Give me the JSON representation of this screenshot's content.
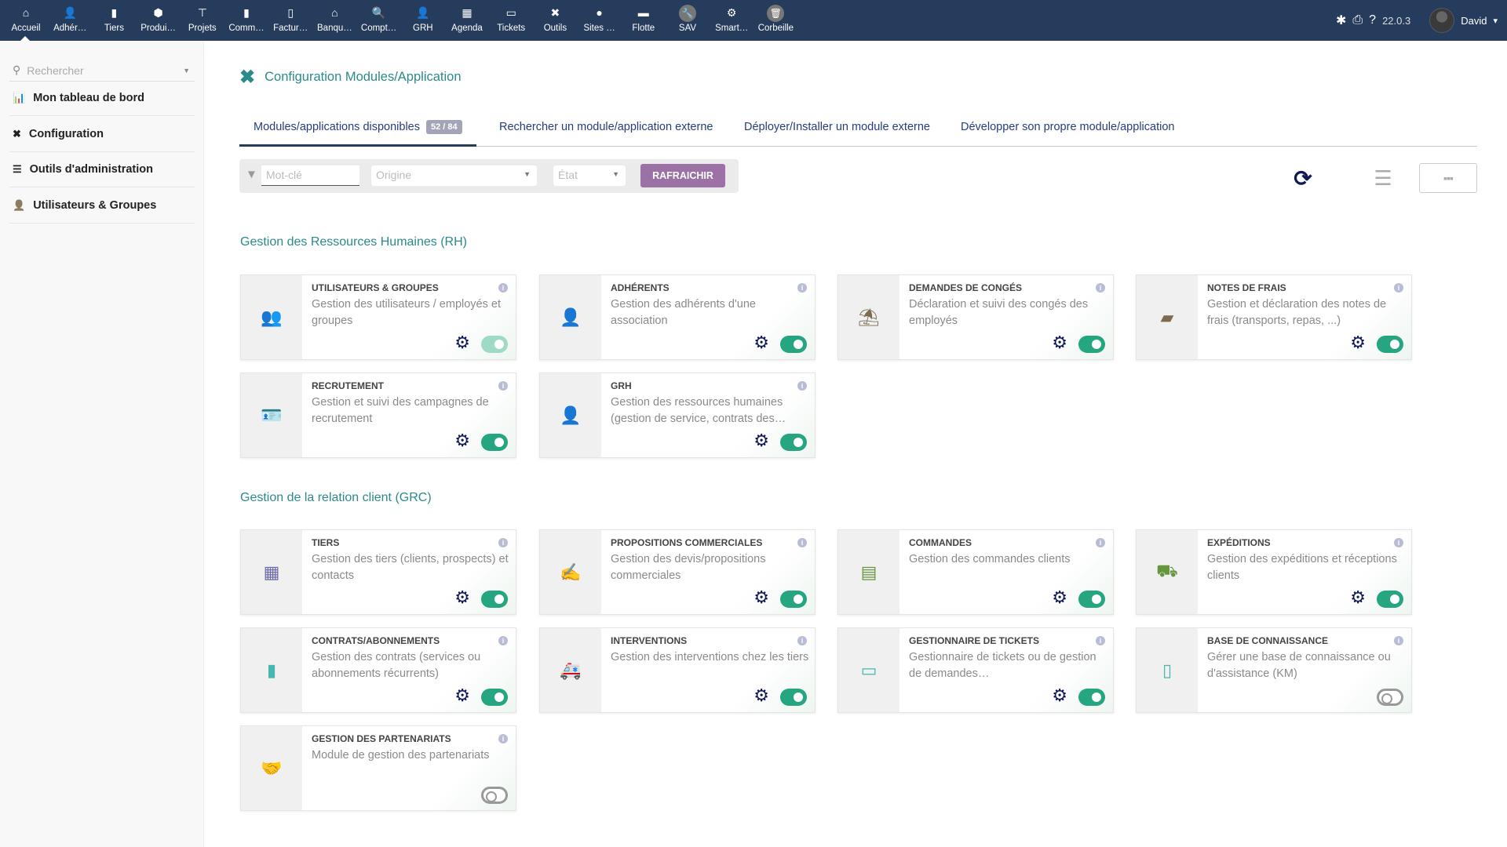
{
  "topnav": {
    "items": [
      {
        "label": "Accueil",
        "icon": "home-icon",
        "glyph": "⌂"
      },
      {
        "label": "Adhér…",
        "icon": "user-icon",
        "glyph": "👤"
      },
      {
        "label": "Tiers",
        "icon": "building-icon",
        "glyph": "▮"
      },
      {
        "label": "Produi…",
        "icon": "cube-icon",
        "glyph": "⬢"
      },
      {
        "label": "Projets",
        "icon": "sitemap-icon",
        "glyph": "⊤"
      },
      {
        "label": "Comm…",
        "icon": "suitcase-icon",
        "glyph": "▮"
      },
      {
        "label": "Factur…",
        "icon": "invoice-icon",
        "glyph": "▯"
      },
      {
        "label": "Banqu…",
        "icon": "bank-icon",
        "glyph": "⌂"
      },
      {
        "label": "Compt…",
        "icon": "search-dollar-icon",
        "glyph": "🔍"
      },
      {
        "label": "GRH",
        "icon": "user-tie-icon",
        "glyph": "👤"
      },
      {
        "label": "Agenda",
        "icon": "calendar-icon",
        "glyph": "▦"
      },
      {
        "label": "Tickets",
        "icon": "ticket-icon",
        "glyph": "▭"
      },
      {
        "label": "Outils",
        "icon": "tools-icon",
        "glyph": "✖"
      },
      {
        "label": "Sites …",
        "icon": "globe-icon",
        "glyph": "●"
      },
      {
        "label": "Flotte",
        "icon": "car-icon",
        "glyph": "▬"
      },
      {
        "label": "SAV",
        "icon": "wrench-icon",
        "glyph": "🔧",
        "circle": true
      },
      {
        "label": "Smart…",
        "icon": "cogs-icon",
        "glyph": "⚙"
      },
      {
        "label": "Corbeille",
        "icon": "trash-icon",
        "glyph": "🗑",
        "circle": true
      }
    ],
    "version": "22.0.3",
    "user": "David"
  },
  "sidebar": {
    "search_placeholder": "Rechercher",
    "items": [
      {
        "label": "Mon tableau de bord",
        "icon": "chart-bar-icon",
        "glyph": "📊"
      },
      {
        "label": "Configuration",
        "icon": "tools-icon",
        "glyph": "✖"
      },
      {
        "label": "Outils d'administration",
        "icon": "server-icon",
        "glyph": "☰"
      },
      {
        "label": "Utilisateurs & Groupes",
        "icon": "user-icon",
        "glyph": "👤"
      }
    ]
  },
  "page": {
    "title": "Configuration Modules/Application",
    "tabs": [
      {
        "label": "Modules/applications disponibles",
        "badge": "52 / 84"
      },
      {
        "label": "Rechercher un module/application externe"
      },
      {
        "label": "Déployer/Installer un module externe"
      },
      {
        "label": "Développer son propre module/application"
      }
    ],
    "filter": {
      "keyword_placeholder": "Mot-clé",
      "origin_placeholder": "Origine",
      "state_placeholder": "État",
      "refresh_label": "RAFRAICHIR"
    }
  },
  "colors": {
    "accent": "#2b8a8a",
    "toggle_on": "#25a580",
    "nav_bg": "#263c5c",
    "refresh_btn": "#9b71a6"
  },
  "sections": [
    {
      "title": "Gestion des Ressources Humaines (RH)",
      "modules": [
        {
          "name": "UTILISATEURS & GROUPES",
          "desc": "Gestion des utilisateurs / employés et groupes",
          "icon": "users-icon",
          "glyph": "👥",
          "color": "#7d6a4f",
          "enabled": true,
          "faded": true,
          "config": true
        },
        {
          "name": "ADHÉRENTS",
          "desc": "Gestion des adhérents d'une association",
          "icon": "user-icon",
          "glyph": "👤",
          "color": "#7d6a4f",
          "enabled": true,
          "config": true
        },
        {
          "name": "DEMANDES DE CONGÉS",
          "desc": "Déclaration et suivi des congés des employés",
          "icon": "umbrella-beach-icon",
          "glyph": "⛱",
          "color": "#7d6a4f",
          "enabled": true,
          "config": true
        },
        {
          "name": "NOTES DE FRAIS",
          "desc": "Gestion et déclaration des notes de frais (transports, repas, ...)",
          "icon": "wallet-icon",
          "glyph": "▰",
          "color": "#7d6a4f",
          "enabled": true,
          "config": true
        },
        {
          "name": "RECRUTEMENT",
          "desc": "Gestion et suivi des campagnes de recrutement",
          "icon": "id-badge-icon",
          "glyph": "🪪",
          "color": "#7d6a4f",
          "enabled": true,
          "config": true
        },
        {
          "name": "GRH",
          "desc": "Gestion des ressources humaines (gestion de service, contrats des…",
          "icon": "user-tie-icon",
          "glyph": "👤",
          "color": "#7d6a4f",
          "enabled": true,
          "config": true
        }
      ]
    },
    {
      "title": "Gestion de la relation client (GRC)",
      "modules": [
        {
          "name": "TIERS",
          "desc": "Gestion des tiers (clients, prospects) et contacts",
          "icon": "building-icon",
          "glyph": "▦",
          "color": "#6c6aa8",
          "enabled": true,
          "config": true
        },
        {
          "name": "PROPOSITIONS COMMERCIALES",
          "desc": "Gestion des devis/propositions commerciales",
          "icon": "file-signature-icon",
          "glyph": "✍",
          "color": "#65953d",
          "enabled": true,
          "config": true
        },
        {
          "name": "COMMANDES",
          "desc": "Gestion des commandes clients",
          "icon": "file-invoice-icon",
          "glyph": "▤",
          "color": "#65953d",
          "enabled": true,
          "config": true
        },
        {
          "name": "EXPÉDITIONS",
          "desc": "Gestion des expéditions et réceptions clients",
          "icon": "dolly-icon",
          "glyph": "⛟",
          "color": "#65953d",
          "enabled": true,
          "config": true
        },
        {
          "name": "CONTRATS/ABONNEMENTS",
          "desc": "Gestion des contrats (services ou abonnements récurrents)",
          "icon": "suitcase-icon",
          "glyph": "▮",
          "color": "#46b6b0",
          "enabled": true,
          "config": true
        },
        {
          "name": "INTERVENTIONS",
          "desc": "Gestion des interventions chez les tiers",
          "icon": "ambulance-icon",
          "glyph": "🚑",
          "color": "#46b6b0",
          "enabled": true,
          "config": true
        },
        {
          "name": "GESTIONNAIRE DE TICKETS",
          "desc": "Gestionnaire de tickets ou de gestion de demandes…",
          "icon": "ticket-icon",
          "glyph": "▭",
          "color": "#46b6b0",
          "enabled": true,
          "config": true
        },
        {
          "name": "BASE DE CONNAISSANCE",
          "desc": "Gérer une base de connaissance ou d'assistance (KM)",
          "icon": "mobile-icon",
          "glyph": "▯",
          "color": "#46b6b0",
          "enabled": false,
          "config": false
        },
        {
          "name": "GESTION DES PARTENARIATS",
          "desc": "Module de gestion des partenariats",
          "icon": "handshake-icon",
          "glyph": "🤝",
          "color": "#6c6aa8",
          "enabled": false,
          "config": false
        }
      ]
    }
  ]
}
